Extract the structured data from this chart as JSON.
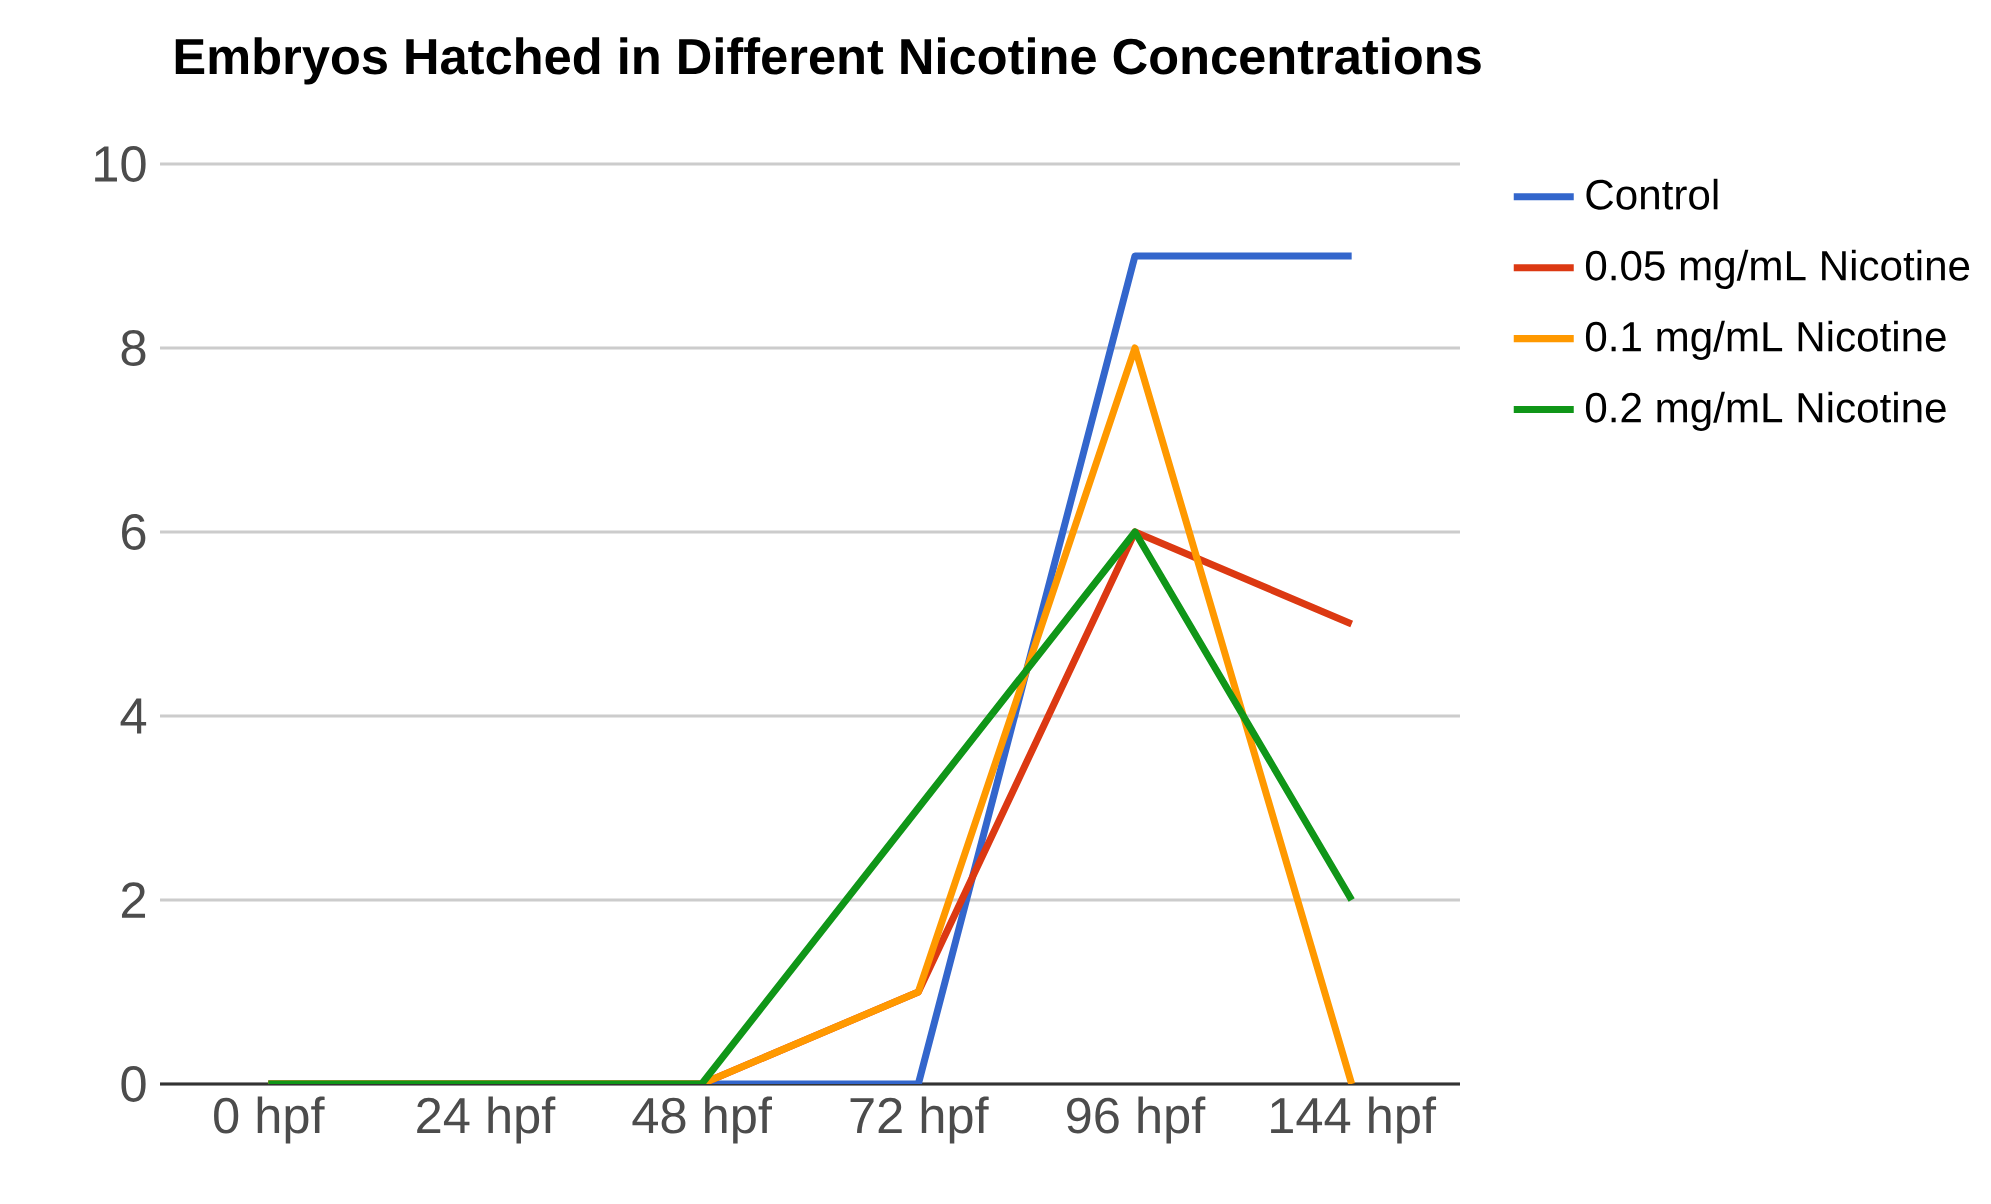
{
  "chart_data": {
    "type": "line",
    "title": "Embryos Hatched in Different Nicotine Concentrations",
    "categories": [
      "0 hpf",
      "24 hpf",
      "48 hpf",
      "72 hpf",
      "96 hpf",
      "144 hpf"
    ],
    "series": [
      {
        "name": "Control",
        "color": "#3366cc",
        "values": [
          0,
          0,
          0,
          0,
          9,
          9
        ]
      },
      {
        "name": "0.05 mg/mL Nicotine",
        "color": "#dc3912",
        "values": [
          0,
          0,
          0,
          1,
          6,
          5
        ]
      },
      {
        "name": "0.1 mg/mL Nicotine",
        "color": "#ff9900",
        "values": [
          0,
          0,
          0,
          1,
          8,
          0
        ]
      },
      {
        "name": "0.2 mg/mL Nicotine",
        "color": "#109618",
        "values": [
          0,
          0,
          0,
          3,
          6,
          2
        ]
      }
    ],
    "ylim": [
      0,
      10
    ],
    "yticks": [
      0,
      2,
      4,
      6,
      8,
      10
    ],
    "grid": "y",
    "legend": "right",
    "marker": "none",
    "line_style": "solid"
  }
}
